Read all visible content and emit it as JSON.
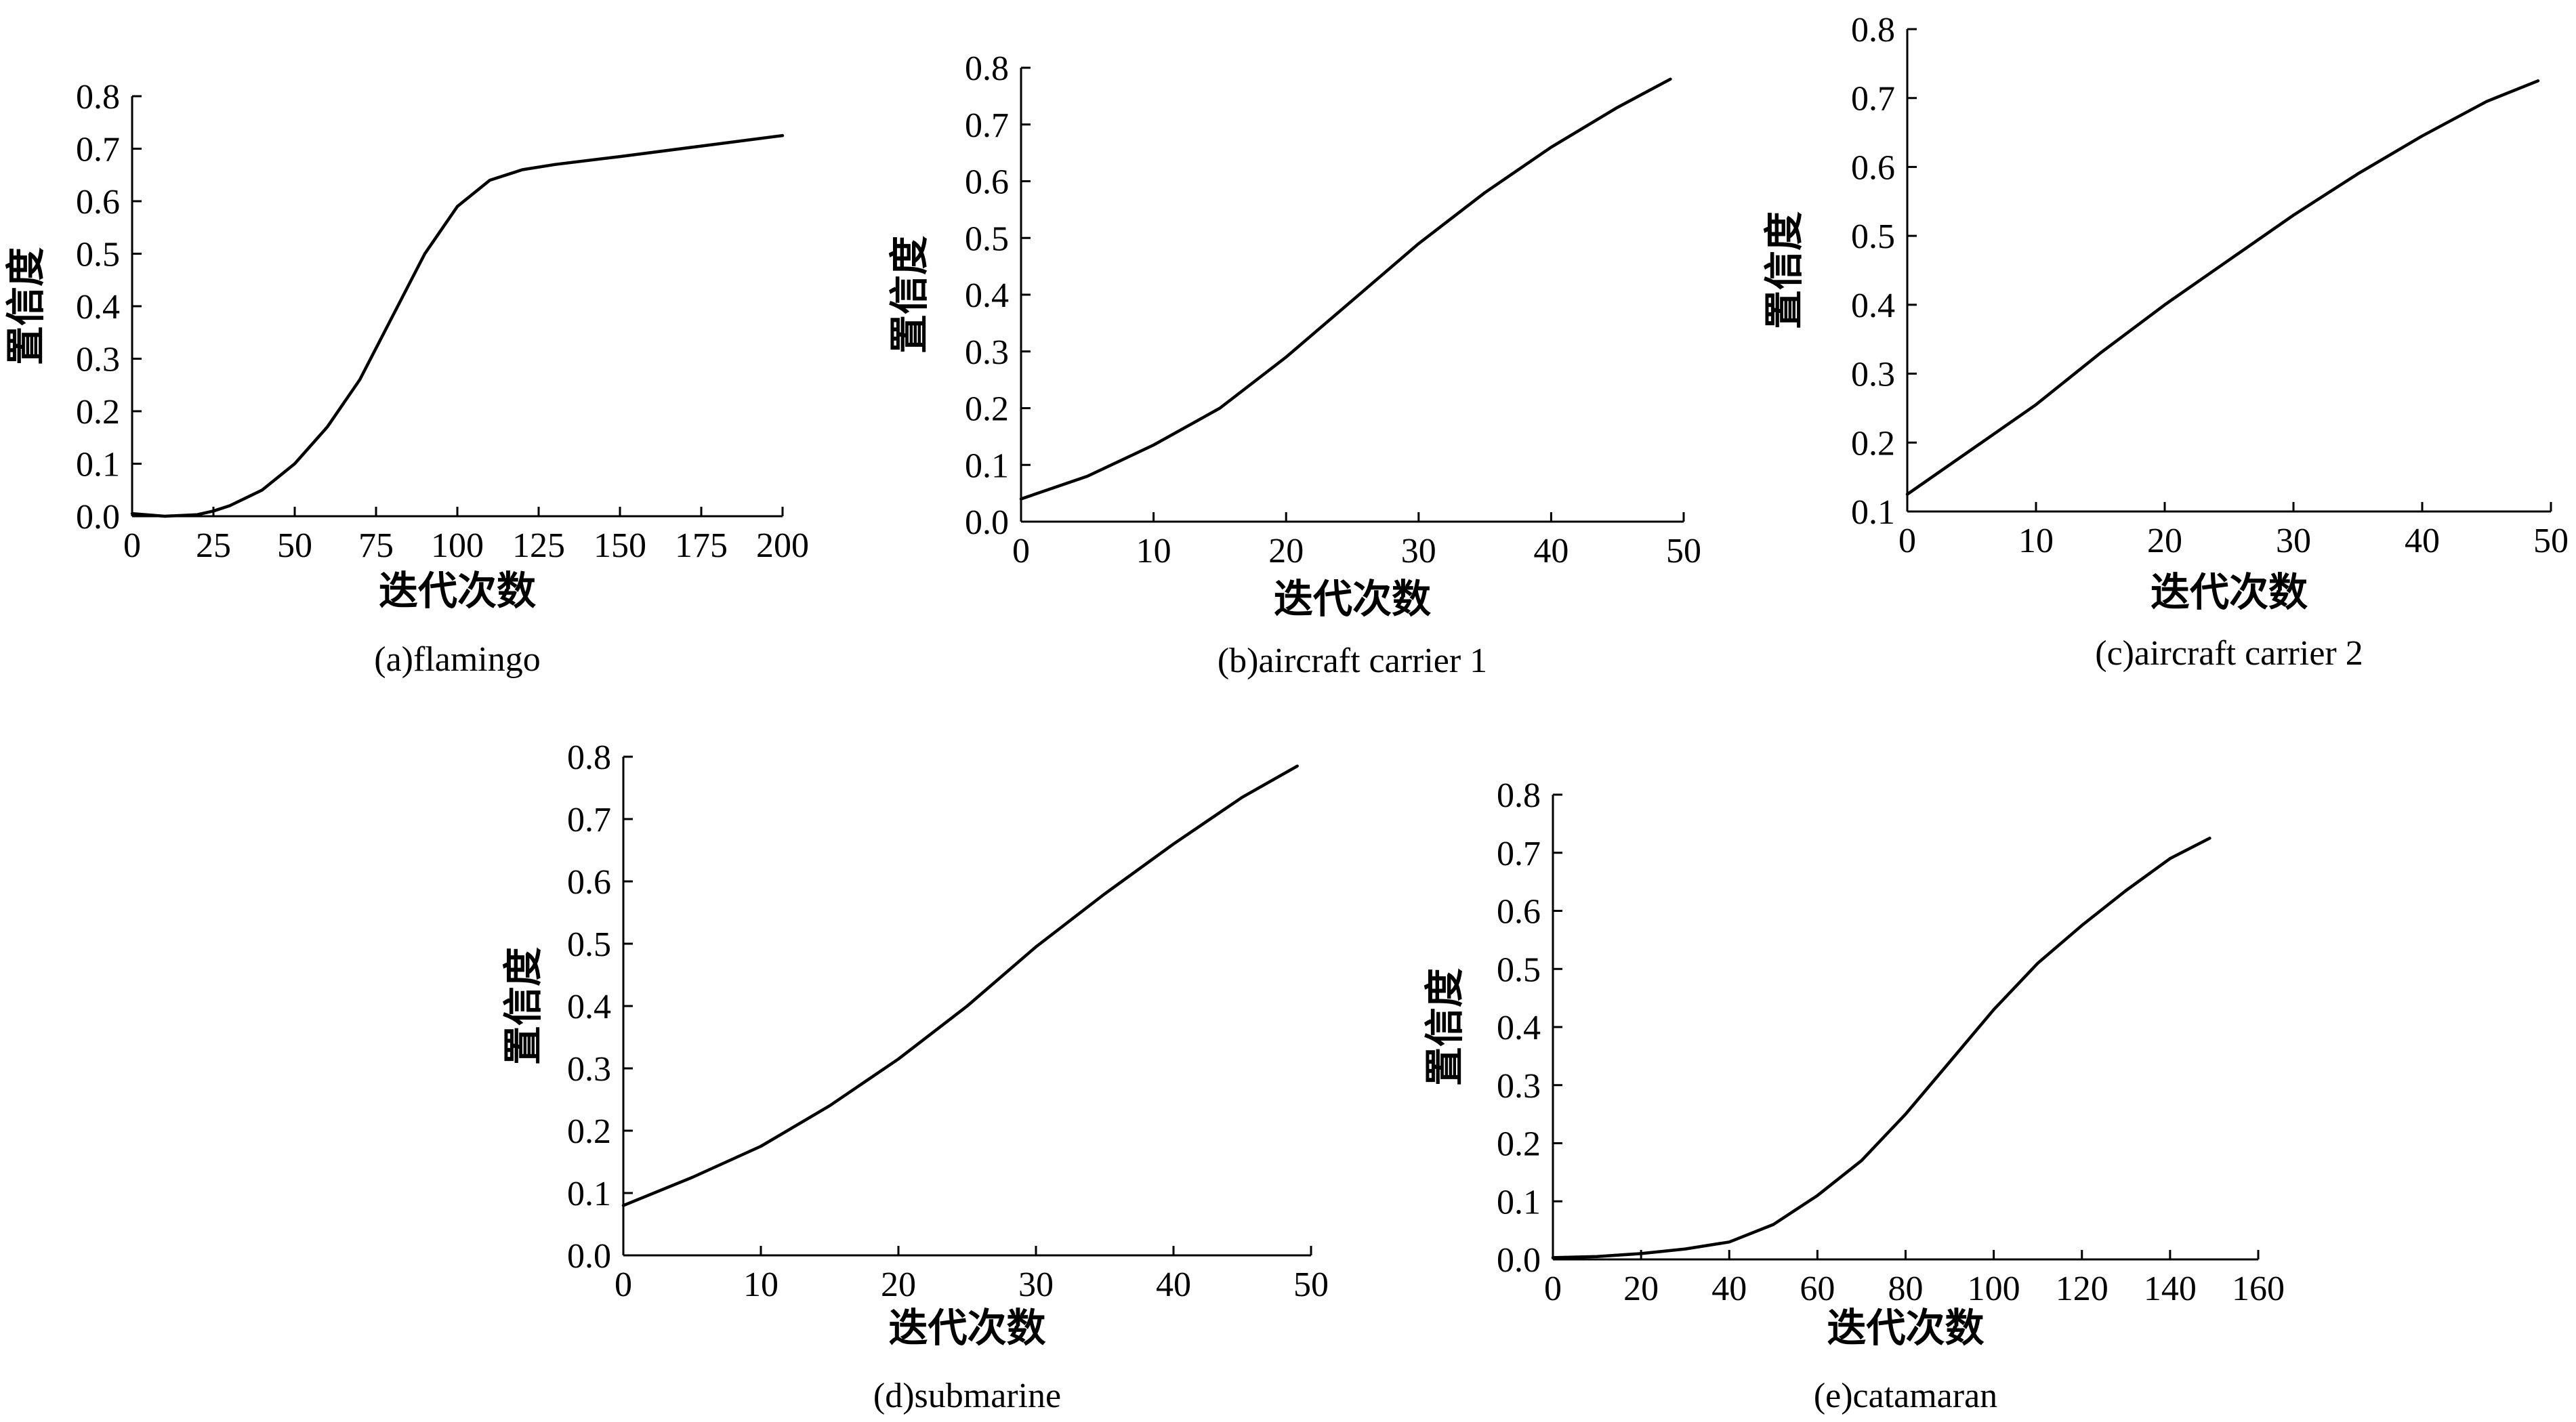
{
  "chart_data": [
    {
      "type": "line",
      "caption": "(a)flamingo",
      "xlabel": "迭代次数",
      "ylabel": "置信度",
      "xlim": [
        0,
        200
      ],
      "ylim": [
        0.0,
        0.8
      ],
      "xticks": [
        0,
        25,
        50,
        75,
        100,
        125,
        150,
        175,
        200
      ],
      "xtick_labels": [
        "0",
        "25",
        "50",
        "75",
        "100",
        "125",
        "150",
        "175",
        "200"
      ],
      "yticks": [
        0.0,
        0.1,
        0.2,
        0.3,
        0.4,
        0.5,
        0.6,
        0.7,
        0.8
      ],
      "ytick_labels": [
        "0.0",
        "0.1",
        "0.2",
        "0.3",
        "0.4",
        "0.5",
        "0.6",
        "0.7",
        "0.8"
      ],
      "series": [
        {
          "x": [
            0,
            10,
            20,
            25,
            30,
            40,
            50,
            60,
            70,
            80,
            90,
            100,
            110,
            120,
            130,
            150,
            175,
            200
          ],
          "y": [
            0.005,
            0.0,
            0.003,
            0.01,
            0.02,
            0.05,
            0.1,
            0.17,
            0.26,
            0.38,
            0.5,
            0.59,
            0.64,
            0.66,
            0.67,
            0.685,
            0.705,
            0.725
          ]
        }
      ]
    },
    {
      "type": "line",
      "caption": "(b)aircraft carrier 1",
      "xlabel": "迭代次数",
      "ylabel": "置信度",
      "xlim": [
        0,
        50
      ],
      "ylim": [
        0.0,
        0.8
      ],
      "xticks": [
        0,
        10,
        20,
        30,
        40,
        50
      ],
      "xtick_labels": [
        "0",
        "10",
        "20",
        "30",
        "40",
        "50"
      ],
      "yticks": [
        0.0,
        0.1,
        0.2,
        0.3,
        0.4,
        0.5,
        0.6,
        0.7,
        0.8
      ],
      "ytick_labels": [
        "0.0",
        "0.1",
        "0.2",
        "0.3",
        "0.4",
        "0.5",
        "0.6",
        "0.7",
        "0.8"
      ],
      "series": [
        {
          "x": [
            0,
            5,
            10,
            15,
            20,
            25,
            30,
            35,
            40,
            45,
            49
          ],
          "y": [
            0.04,
            0.08,
            0.135,
            0.2,
            0.29,
            0.39,
            0.49,
            0.58,
            0.66,
            0.73,
            0.78
          ]
        }
      ]
    },
    {
      "type": "line",
      "caption": "(c)aircraft carrier 2",
      "xlabel": "迭代次数",
      "ylabel": "置信度",
      "xlim": [
        0,
        50
      ],
      "ylim": [
        0.1,
        0.8
      ],
      "xticks": [
        0,
        10,
        20,
        30,
        40,
        50
      ],
      "xtick_labels": [
        "0",
        "10",
        "20",
        "30",
        "40",
        "50"
      ],
      "yticks": [
        0.1,
        0.2,
        0.3,
        0.4,
        0.5,
        0.6,
        0.7,
        0.8
      ],
      "ytick_labels": [
        "0.1",
        "0.2",
        "0.3",
        "0.4",
        "0.5",
        "0.6",
        "0.7",
        "0.8"
      ],
      "series": [
        {
          "x": [
            0,
            5,
            10,
            15,
            20,
            25,
            30,
            35,
            40,
            45,
            49
          ],
          "y": [
            0.125,
            0.19,
            0.255,
            0.33,
            0.4,
            0.465,
            0.53,
            0.59,
            0.645,
            0.695,
            0.725
          ]
        }
      ]
    },
    {
      "type": "line",
      "caption": "(d)submarine",
      "xlabel": "迭代次数",
      "ylabel": "置信度",
      "xlim": [
        0,
        50
      ],
      "ylim": [
        0.0,
        0.8
      ],
      "xticks": [
        0,
        10,
        20,
        30,
        40,
        50
      ],
      "xtick_labels": [
        "0",
        "10",
        "20",
        "30",
        "40",
        "50"
      ],
      "yticks": [
        0.0,
        0.1,
        0.2,
        0.3,
        0.4,
        0.5,
        0.6,
        0.7,
        0.8
      ],
      "ytick_labels": [
        "0.0",
        "0.1",
        "0.2",
        "0.3",
        "0.4",
        "0.5",
        "0.6",
        "0.7",
        "0.8"
      ],
      "series": [
        {
          "x": [
            0,
            5,
            10,
            15,
            20,
            25,
            30,
            35,
            40,
            45,
            49
          ],
          "y": [
            0.08,
            0.125,
            0.175,
            0.24,
            0.315,
            0.4,
            0.495,
            0.58,
            0.66,
            0.735,
            0.785
          ]
        }
      ]
    },
    {
      "type": "line",
      "caption": "(e)catamaran",
      "xlabel": "迭代次数",
      "ylabel": "置信度",
      "xlim": [
        0,
        160
      ],
      "ylim": [
        0.0,
        0.8
      ],
      "xticks": [
        0,
        20,
        40,
        60,
        80,
        100,
        120,
        140,
        160
      ],
      "xtick_labels": [
        "0",
        "20",
        "40",
        "60",
        "80",
        "100",
        "120",
        "140",
        "160"
      ],
      "yticks": [
        0.0,
        0.1,
        0.2,
        0.3,
        0.4,
        0.5,
        0.6,
        0.7,
        0.8
      ],
      "ytick_labels": [
        "0.0",
        "0.1",
        "0.2",
        "0.3",
        "0.4",
        "0.5",
        "0.6",
        "0.7",
        "0.8"
      ],
      "series": [
        {
          "x": [
            0,
            10,
            20,
            30,
            40,
            50,
            60,
            70,
            80,
            90,
            100,
            110,
            120,
            130,
            140,
            149
          ],
          "y": [
            0.003,
            0.005,
            0.01,
            0.018,
            0.03,
            0.06,
            0.11,
            0.17,
            0.25,
            0.34,
            0.43,
            0.51,
            0.575,
            0.635,
            0.69,
            0.725
          ]
        }
      ]
    }
  ]
}
